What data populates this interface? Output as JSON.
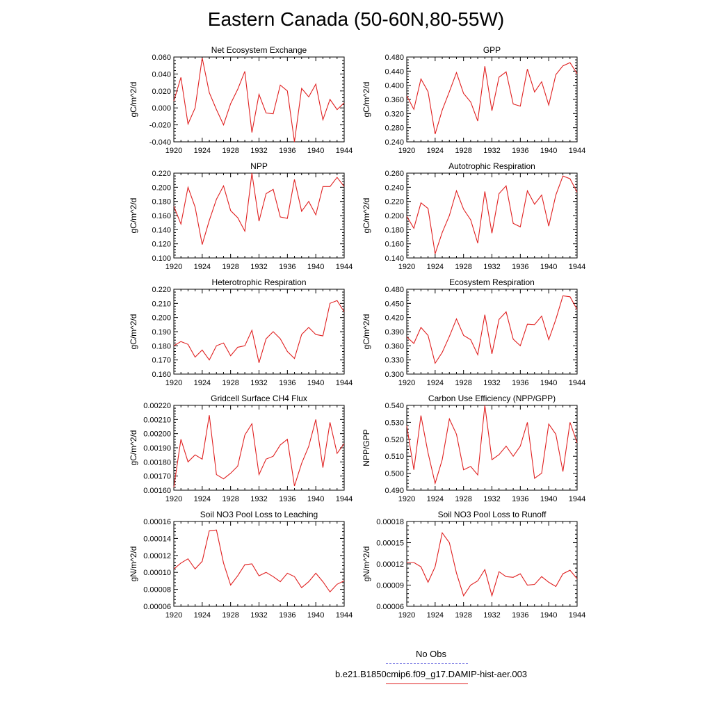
{
  "figure": {
    "title": "Eastern Canada (50-60N,80-55W)",
    "legend": [
      {
        "label": "No Obs",
        "color": "#6a6ae0",
        "style": "dashed"
      },
      {
        "label": "b.e21.B1850cmip6.f09_g17.DAMIP-hist-aer.003",
        "color": "#e02020",
        "style": "solid"
      }
    ]
  },
  "chart_data": [
    {
      "type": "line",
      "title": "Net Ecosystem Exchange",
      "ylabel": "gC/m^2/d",
      "xlim": [
        1920,
        1944
      ],
      "ylim": [
        -0.04,
        0.06
      ],
      "yticks": [
        "-0.040",
        "-0.020",
        "0.000",
        "0.020",
        "0.040",
        "0.060"
      ],
      "xticks": [
        "1920",
        "1924",
        "1928",
        "1932",
        "1936",
        "1940",
        "1944"
      ],
      "x": [
        1920,
        1921,
        1922,
        1923,
        1924,
        1925,
        1926,
        1927,
        1928,
        1929,
        1930,
        1931,
        1932,
        1933,
        1934,
        1935,
        1936,
        1937,
        1938,
        1939,
        1940,
        1941,
        1942,
        1943,
        1944
      ],
      "series": [
        {
          "color": "#e02020",
          "values": [
            0.008,
            0.036,
            -0.019,
            0.0,
            0.059,
            0.018,
            -0.002,
            -0.02,
            0.005,
            0.022,
            0.043,
            -0.029,
            0.016,
            -0.006,
            -0.007,
            0.027,
            0.02,
            -0.04,
            0.023,
            0.013,
            0.028,
            -0.014,
            0.01,
            -0.002,
            0.006
          ]
        }
      ]
    },
    {
      "type": "line",
      "title": "GPP",
      "ylabel": "gC/m^2/d",
      "xlim": [
        1920,
        1944
      ],
      "ylim": [
        0.24,
        0.48
      ],
      "yticks": [
        "0.240",
        "0.280",
        "0.320",
        "0.360",
        "0.400",
        "0.440",
        "0.480"
      ],
      "xticks": [
        "1920",
        "1924",
        "1928",
        "1932",
        "1936",
        "1940",
        "1944"
      ],
      "x": [
        1920,
        1921,
        1922,
        1923,
        1924,
        1925,
        1926,
        1927,
        1928,
        1929,
        1930,
        1931,
        1932,
        1933,
        1934,
        1935,
        1936,
        1937,
        1938,
        1939,
        1940,
        1941,
        1942,
        1943,
        1944
      ],
      "series": [
        {
          "color": "#e02020",
          "values": [
            0.37,
            0.332,
            0.418,
            0.382,
            0.262,
            0.33,
            0.382,
            0.436,
            0.377,
            0.353,
            0.299,
            0.454,
            0.328,
            0.423,
            0.438,
            0.347,
            0.341,
            0.446,
            0.381,
            0.41,
            0.344,
            0.43,
            0.455,
            0.464,
            0.433
          ]
        }
      ]
    },
    {
      "type": "line",
      "title": "NPP",
      "ylabel": "gC/m^2/d",
      "xlim": [
        1920,
        1944
      ],
      "ylim": [
        0.1,
        0.22
      ],
      "yticks": [
        "0.100",
        "0.120",
        "0.140",
        "0.160",
        "0.180",
        "0.200",
        "0.220"
      ],
      "xticks": [
        "1920",
        "1924",
        "1928",
        "1932",
        "1936",
        "1940",
        "1944"
      ],
      "x": [
        1920,
        1921,
        1922,
        1923,
        1924,
        1925,
        1926,
        1927,
        1928,
        1929,
        1930,
        1931,
        1932,
        1933,
        1934,
        1935,
        1936,
        1937,
        1938,
        1939,
        1940,
        1941,
        1942,
        1943,
        1944
      ],
      "series": [
        {
          "color": "#e02020",
          "values": [
            0.173,
            0.148,
            0.2,
            0.172,
            0.119,
            0.153,
            0.183,
            0.202,
            0.167,
            0.157,
            0.138,
            0.22,
            0.152,
            0.191,
            0.197,
            0.158,
            0.156,
            0.211,
            0.166,
            0.18,
            0.161,
            0.201,
            0.201,
            0.214,
            0.201
          ]
        }
      ]
    },
    {
      "type": "line",
      "title": "Autotrophic Respiration",
      "ylabel": "gC/m^2/d",
      "xlim": [
        1920,
        1944
      ],
      "ylim": [
        0.14,
        0.26
      ],
      "yticks": [
        "0.140",
        "0.160",
        "0.180",
        "0.200",
        "0.220",
        "0.240",
        "0.260"
      ],
      "xticks": [
        "1920",
        "1924",
        "1928",
        "1932",
        "1936",
        "1940",
        "1944"
      ],
      "x": [
        1920,
        1921,
        1922,
        1923,
        1924,
        1925,
        1926,
        1927,
        1928,
        1929,
        1930,
        1931,
        1932,
        1933,
        1934,
        1935,
        1936,
        1937,
        1938,
        1939,
        1940,
        1941,
        1942,
        1943,
        1944
      ],
      "series": [
        {
          "color": "#e02020",
          "values": [
            0.199,
            0.182,
            0.218,
            0.21,
            0.146,
            0.176,
            0.2,
            0.235,
            0.209,
            0.194,
            0.161,
            0.234,
            0.175,
            0.231,
            0.242,
            0.189,
            0.184,
            0.235,
            0.216,
            0.229,
            0.185,
            0.229,
            0.256,
            0.252,
            0.233
          ]
        }
      ]
    },
    {
      "type": "line",
      "title": "Heterotrophic Respiration",
      "ylabel": "gC/m^2/d",
      "xlim": [
        1920,
        1944
      ],
      "ylim": [
        0.16,
        0.22
      ],
      "yticks": [
        "0.160",
        "0.170",
        "0.180",
        "0.190",
        "0.200",
        "0.210",
        "0.220"
      ],
      "xticks": [
        "1920",
        "1924",
        "1928",
        "1932",
        "1936",
        "1940",
        "1944"
      ],
      "x": [
        1920,
        1921,
        1922,
        1923,
        1924,
        1925,
        1926,
        1927,
        1928,
        1929,
        1930,
        1931,
        1932,
        1933,
        1934,
        1935,
        1936,
        1937,
        1938,
        1939,
        1940,
        1941,
        1942,
        1943,
        1944
      ],
      "series": [
        {
          "color": "#e02020",
          "values": [
            0.18,
            0.183,
            0.181,
            0.172,
            0.177,
            0.17,
            0.18,
            0.182,
            0.173,
            0.179,
            0.18,
            0.191,
            0.168,
            0.185,
            0.19,
            0.185,
            0.176,
            0.171,
            0.188,
            0.193,
            0.188,
            0.187,
            0.21,
            0.212,
            0.204
          ]
        }
      ]
    },
    {
      "type": "line",
      "title": "Ecosystem Respiration",
      "ylabel": "gC/m^2/d",
      "xlim": [
        1920,
        1944
      ],
      "ylim": [
        0.3,
        0.48
      ],
      "yticks": [
        "0.300",
        "0.330",
        "0.360",
        "0.390",
        "0.420",
        "0.450",
        "0.480"
      ],
      "xticks": [
        "1920",
        "1924",
        "1928",
        "1932",
        "1936",
        "1940",
        "1944"
      ],
      "x": [
        1920,
        1921,
        1922,
        1923,
        1924,
        1925,
        1926,
        1927,
        1928,
        1929,
        1930,
        1931,
        1932,
        1933,
        1934,
        1935,
        1936,
        1937,
        1938,
        1939,
        1940,
        1941,
        1942,
        1943,
        1944
      ],
      "series": [
        {
          "color": "#e02020",
          "values": [
            0.379,
            0.365,
            0.399,
            0.382,
            0.323,
            0.346,
            0.38,
            0.417,
            0.382,
            0.373,
            0.341,
            0.426,
            0.343,
            0.416,
            0.432,
            0.374,
            0.36,
            0.406,
            0.405,
            0.423,
            0.373,
            0.416,
            0.466,
            0.464,
            0.437
          ]
        }
      ]
    },
    {
      "type": "line",
      "title": "Gridcell Surface CH4 Flux",
      "ylabel": "gC/m^2/d",
      "xlim": [
        1920,
        1944
      ],
      "ylim": [
        0.0016,
        0.0022
      ],
      "yticks": [
        "0.00160",
        "0.00170",
        "0.00180",
        "0.00190",
        "0.00200",
        "0.00210",
        "0.00220"
      ],
      "xticks": [
        "1920",
        "1924",
        "1928",
        "1932",
        "1936",
        "1940",
        "1944"
      ],
      "x": [
        1920,
        1921,
        1922,
        1923,
        1924,
        1925,
        1926,
        1927,
        1928,
        1929,
        1930,
        1931,
        1932,
        1933,
        1934,
        1935,
        1936,
        1937,
        1938,
        1939,
        1940,
        1941,
        1942,
        1943,
        1944
      ],
      "series": [
        {
          "color": "#e02020",
          "values": [
            0.00162,
            0.00196,
            0.0018,
            0.00185,
            0.00182,
            0.00213,
            0.00171,
            0.00168,
            0.00172,
            0.00177,
            0.00199,
            0.00207,
            0.00171,
            0.00182,
            0.00184,
            0.00192,
            0.00196,
            0.00163,
            0.00179,
            0.00191,
            0.0021,
            0.00176,
            0.00208,
            0.00186,
            0.00193
          ]
        }
      ]
    },
    {
      "type": "line",
      "title": "Carbon Use Efficiency (NPP/GPP)",
      "ylabel": "NPP/GPP",
      "xlim": [
        1920,
        1944
      ],
      "ylim": [
        0.49,
        0.54
      ],
      "yticks": [
        "0.490",
        "0.500",
        "0.510",
        "0.520",
        "0.530",
        "0.540"
      ],
      "xticks": [
        "1920",
        "1924",
        "1928",
        "1932",
        "1936",
        "1940",
        "1944"
      ],
      "x": [
        1920,
        1921,
        1922,
        1923,
        1924,
        1925,
        1926,
        1927,
        1928,
        1929,
        1930,
        1931,
        1932,
        1933,
        1934,
        1935,
        1936,
        1937,
        1938,
        1939,
        1940,
        1941,
        1942,
        1943,
        1944
      ],
      "series": [
        {
          "color": "#e02020",
          "values": [
            0.528,
            0.502,
            0.534,
            0.512,
            0.494,
            0.508,
            0.532,
            0.523,
            0.502,
            0.504,
            0.499,
            0.54,
            0.508,
            0.511,
            0.516,
            0.51,
            0.516,
            0.53,
            0.497,
            0.5,
            0.529,
            0.523,
            0.501,
            0.53,
            0.518
          ]
        }
      ]
    },
    {
      "type": "line",
      "title": "Soil NO3 Pool Loss to Leaching",
      "ylabel": "gN/m^2/d",
      "xlim": [
        1920,
        1944
      ],
      "ylim": [
        6e-05,
        0.00016
      ],
      "yticks": [
        "0.00006",
        "0.00008",
        "0.00010",
        "0.00012",
        "0.00014",
        "0.00016"
      ],
      "xticks": [
        "1920",
        "1924",
        "1928",
        "1932",
        "1936",
        "1940",
        "1944"
      ],
      "x": [
        1920,
        1921,
        1922,
        1923,
        1924,
        1925,
        1926,
        1927,
        1928,
        1929,
        1930,
        1931,
        1932,
        1933,
        1934,
        1935,
        1936,
        1937,
        1938,
        1939,
        1940,
        1941,
        1942,
        1943,
        1944
      ],
      "series": [
        {
          "color": "#e02020",
          "values": [
            0.000104,
            0.000111,
            0.000116,
            0.000104,
            0.000113,
            0.000149,
            0.00015,
            0.000111,
            8.5e-05,
            9.6e-05,
            0.000109,
            0.00011,
            9.6e-05,
            0.0001,
            9.5e-05,
            8.9e-05,
            9.9e-05,
            9.5e-05,
            8.2e-05,
            8.9e-05,
            9.9e-05,
            8.9e-05,
            7.7e-05,
            8.6e-05,
            9e-05
          ]
        }
      ]
    },
    {
      "type": "line",
      "title": "Soil NO3 Pool Loss to Runoff",
      "ylabel": "gN/m^2/d",
      "xlim": [
        1920,
        1944
      ],
      "ylim": [
        6e-05,
        0.00018
      ],
      "yticks": [
        "0.00006",
        "0.00009",
        "0.00012",
        "0.00015",
        "0.00018"
      ],
      "xticks": [
        "1920",
        "1924",
        "1928",
        "1932",
        "1936",
        "1940",
        "1944"
      ],
      "x": [
        1920,
        1921,
        1922,
        1923,
        1924,
        1925,
        1926,
        1927,
        1928,
        1929,
        1930,
        1931,
        1932,
        1933,
        1934,
        1935,
        1936,
        1937,
        1938,
        1939,
        1940,
        1941,
        1942,
        1943,
        1944
      ],
      "series": [
        {
          "color": "#e02020",
          "values": [
            0.000122,
            0.000122,
            0.000116,
            9.4e-05,
            0.000116,
            0.000164,
            0.00015,
            0.000107,
            7.5e-05,
            9e-05,
            9.6e-05,
            0.000112,
            7.5e-05,
            0.000109,
            0.000102,
            0.000101,
            0.000106,
            9e-05,
            9.1e-05,
            0.000102,
            9.4e-05,
            8.8e-05,
            0.000106,
            0.000111,
            9.9e-05
          ]
        }
      ]
    }
  ]
}
